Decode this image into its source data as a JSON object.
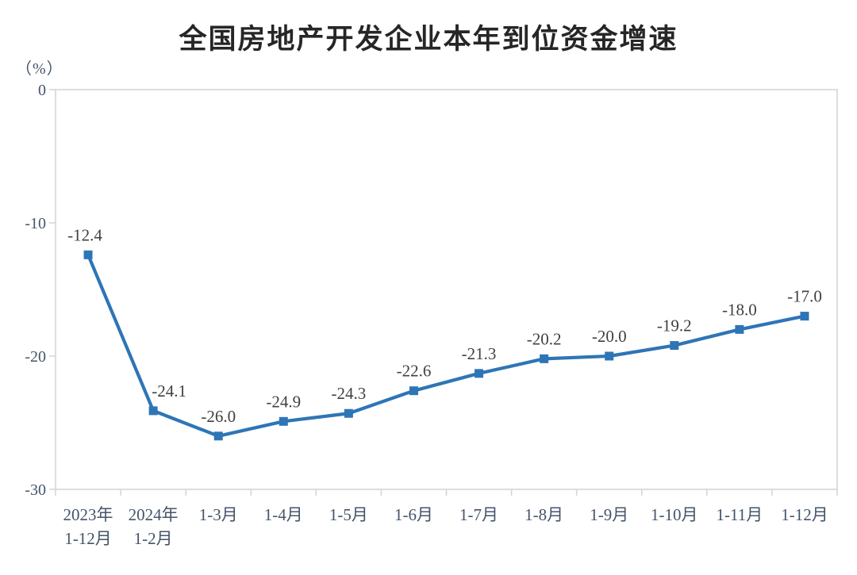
{
  "title": "全国房地产开发企业本年到位资金增速",
  "colors": {
    "line": "#2E75B6",
    "marker": "#2E75B6",
    "axis": "#D6D6D6",
    "axis_text": "#44546A",
    "data_label": "#404040",
    "title_text": "#262626"
  },
  "chart_data": {
    "type": "line",
    "title": "全国房地产开发企业本年到位资金增速",
    "ylabel": "（%）",
    "categories": [
      "2023年\n1-12月",
      "2024年\n1-2月",
      "1-3月",
      "1-4月",
      "1-5月",
      "1-6月",
      "1-7月",
      "1-8月",
      "1-9月",
      "1-10月",
      "1-11月",
      "1-12月"
    ],
    "values": [
      -12.4,
      -24.1,
      -26.0,
      -24.9,
      -24.3,
      -22.6,
      -21.3,
      -20.2,
      -20.0,
      -19.2,
      -18.0,
      -17.0
    ],
    "point_labels": [
      "-12.4",
      "-24.1",
      "-26.0",
      "-24.9",
      "-24.3",
      "-22.6",
      "-21.3",
      "-20.2",
      "-20.0",
      "-19.2",
      "-18.0",
      "-17.0"
    ],
    "label_dx": [
      -4,
      20,
      0,
      0,
      0,
      0,
      0,
      0,
      0,
      0,
      0,
      0
    ],
    "yticks": [
      0,
      -10,
      -20,
      -30
    ],
    "ytick_labels": [
      "0",
      "-10",
      "-20",
      "-30"
    ],
    "ylim": [
      -30,
      0
    ],
    "grid": false,
    "legend": "none",
    "marker": "square"
  }
}
